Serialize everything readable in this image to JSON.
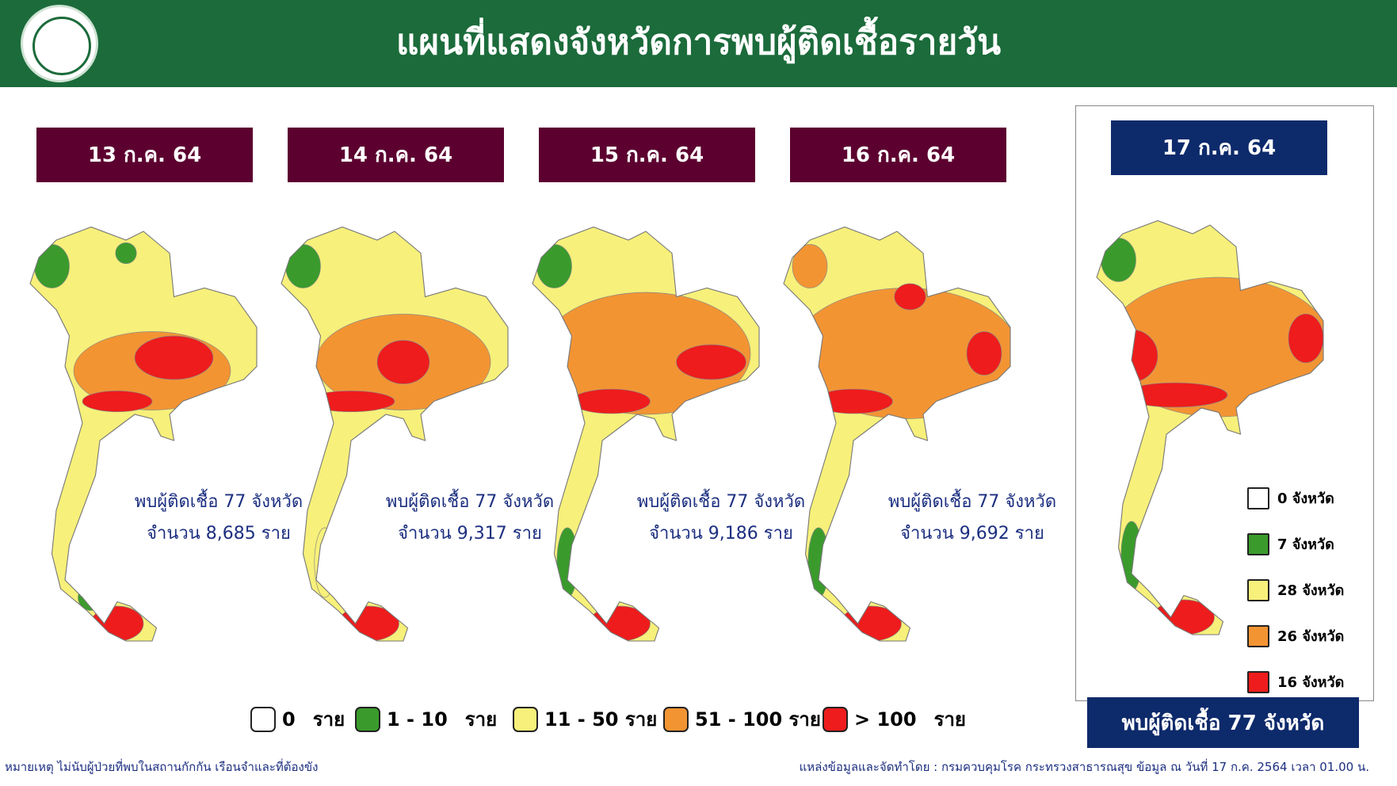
{
  "header": {
    "title": "แผนที่แสดงจังหวัดการพบผู้ติดเชื้อรายวัน"
  },
  "panels": [
    {
      "date": "13 ก.ค. 64",
      "summary": "พบผู้ติดเชื้อ 77 จังหวัด",
      "count": "จำนวน 8,685 ราย"
    },
    {
      "date": "14 ก.ค. 64",
      "summary": "พบผู้ติดเชื้อ 77 จังหวัด",
      "count": "จำนวน 9,317 ราย"
    },
    {
      "date": "15 ก.ค. 64",
      "summary": "พบผู้ติดเชื้อ 77 จังหวัด",
      "count": "จำนวน 9,186 ราย"
    },
    {
      "date": "16 ก.ค. 64",
      "summary": "พบผู้ติดเชื้อ 77 จังหวัด",
      "count": "จำนวน 9,692 ราย"
    }
  ],
  "latest": {
    "date": "17 ก.ค. 64",
    "summary": "พบผู้ติดเชื้อ 77 จังหวัด",
    "legend": [
      {
        "label": "0 จังหวัด",
        "color": "#ffffff"
      },
      {
        "label": "7 จังหวัด",
        "color": "#3a9b2c"
      },
      {
        "label": "28 จังหวัด",
        "color": "#f7f07a"
      },
      {
        "label": "26 จังหวัด",
        "color": "#f39433"
      },
      {
        "label": "16 จังหวัด",
        "color": "#ee1c1c"
      }
    ]
  },
  "legend": [
    {
      "label": "0",
      "unit": "ราย",
      "color": "#ffffff"
    },
    {
      "label": "1 - 10",
      "unit": "ราย",
      "color": "#3a9b2c"
    },
    {
      "label": "11 - 50 ราย",
      "color": "#f7f07a"
    },
    {
      "label": "51 - 100 ราย",
      "color": "#f39433"
    },
    {
      "label": "> 100",
      "unit": "ราย",
      "color": "#ee1c1c"
    }
  ],
  "footer": {
    "note": "หมายเหตุ ไม่นับผู้ป่วยที่พบในสถานกักกัน เรือนจำและที่ต้องขัง",
    "source": "แหล่งข้อมูลและจัดทำโดย : กรมควบคุมโรค กระทรวงสาธารณสุข ข้อมูล ณ วันที่ 17 ก.ค. 2564 เวลา 01.00 น."
  }
}
